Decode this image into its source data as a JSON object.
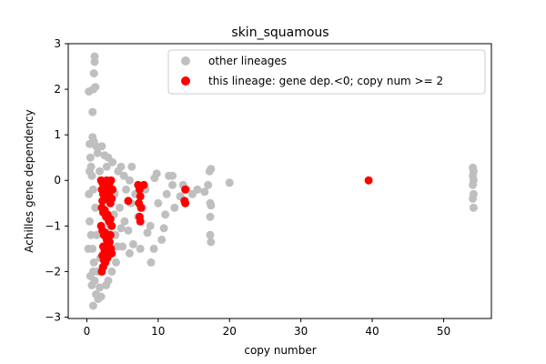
{
  "chart_data": {
    "type": "scatter",
    "title": "skin_squamous",
    "xlabel": "copy number",
    "ylabel": "Achilles gene dependency",
    "xlim": [
      -2.6,
      56.7
    ],
    "ylim": [
      -3.03,
      3.0
    ],
    "xticks": [
      0,
      10,
      20,
      30,
      40,
      50
    ],
    "yticks": [
      -3,
      -2,
      -1,
      0,
      1,
      2,
      3
    ],
    "grid": false,
    "legend_position": "top-right",
    "series": [
      {
        "name": "other lineages",
        "color": "#bfbfbf",
        "points": [
          [
            0.3,
            1.95
          ],
          [
            0.9,
            2.0
          ],
          [
            1.2,
            2.05
          ],
          [
            1.0,
            2.35
          ],
          [
            1.1,
            2.6
          ],
          [
            1.1,
            2.72
          ],
          [
            0.8,
            1.5
          ],
          [
            0.4,
            0.8
          ],
          [
            0.5,
            0.5
          ],
          [
            0.6,
            0.3
          ],
          [
            0.8,
            0.95
          ],
          [
            1.0,
            0.85
          ],
          [
            1.3,
            0.75
          ],
          [
            1.5,
            0.6
          ],
          [
            2.5,
            0.55
          ],
          [
            3.0,
            0.5
          ],
          [
            0.7,
            0.1
          ],
          [
            0.9,
            -0.2
          ],
          [
            1.2,
            -0.6
          ],
          [
            0.4,
            -0.9
          ],
          [
            0.6,
            -1.2
          ],
          [
            0.8,
            -1.5
          ],
          [
            1.0,
            -1.8
          ],
          [
            0.5,
            -2.1
          ],
          [
            0.7,
            -2.3
          ],
          [
            1.3,
            -2.5
          ],
          [
            0.9,
            -2.75
          ],
          [
            1.1,
            -2.2
          ],
          [
            1.5,
            -2.0
          ],
          [
            1.8,
            -2.35
          ],
          [
            2.0,
            -2.55
          ],
          [
            1.6,
            -2.6
          ],
          [
            1.9,
            -1.7
          ],
          [
            2.2,
            -1.9
          ],
          [
            2.7,
            -2.3
          ],
          [
            3.0,
            -2.2
          ],
          [
            3.5,
            -2.0
          ],
          [
            4.1,
            -1.8
          ],
          [
            4.3,
            -1.45
          ],
          [
            5.0,
            -1.45
          ],
          [
            4.0,
            -1.2
          ],
          [
            3.3,
            -1.0
          ],
          [
            4.6,
            -0.6
          ],
          [
            3.9,
            -0.3
          ],
          [
            4.4,
            0.2
          ],
          [
            5.2,
            0.1
          ],
          [
            3.6,
            0.4
          ],
          [
            4.8,
            0.3
          ],
          [
            5.5,
            -0.2
          ],
          [
            6.0,
            0.0
          ],
          [
            6.3,
            0.3
          ],
          [
            6.8,
            -0.3
          ],
          [
            7.2,
            -0.8
          ],
          [
            6.5,
            -1.4
          ],
          [
            7.5,
            -1.5
          ],
          [
            4.8,
            -1.05
          ],
          [
            5.8,
            -1.1
          ],
          [
            6.0,
            -1.6
          ],
          [
            8.5,
            -1.15
          ],
          [
            8.9,
            -1.0
          ],
          [
            9.4,
            -1.5
          ],
          [
            9.0,
            -1.8
          ],
          [
            10.5,
            -1.3
          ],
          [
            10.8,
            -1.05
          ],
          [
            11.0,
            -0.75
          ],
          [
            10.0,
            -0.5
          ],
          [
            9.5,
            0.05
          ],
          [
            9.8,
            0.15
          ],
          [
            11.5,
            0.1
          ],
          [
            12.0,
            -0.1
          ],
          [
            11.2,
            -0.3
          ],
          [
            12.3,
            -0.6
          ],
          [
            13.1,
            -0.35
          ],
          [
            13.5,
            -0.1
          ],
          [
            12.0,
            0.1
          ],
          [
            14.0,
            -0.2
          ],
          [
            14.8,
            -0.3
          ],
          [
            15.5,
            -0.2
          ],
          [
            16.5,
            -0.25
          ],
          [
            17.0,
            -0.1
          ],
          [
            17.2,
            0.2
          ],
          [
            17.4,
            0.25
          ],
          [
            17.3,
            -0.5
          ],
          [
            17.4,
            -0.55
          ],
          [
            17.3,
            -0.8
          ],
          [
            17.3,
            -1.2
          ],
          [
            17.4,
            -1.35
          ],
          [
            20.0,
            -0.05
          ],
          [
            1.8,
            0.2
          ],
          [
            2.5,
            -0.7
          ],
          [
            3.8,
            -0.75
          ],
          [
            5.3,
            -0.9
          ],
          [
            6.2,
            -0.5
          ],
          [
            7.8,
            -0.6
          ],
          [
            8.2,
            -0.2
          ],
          [
            2.1,
            0.75
          ],
          [
            2.8,
            0.3
          ],
          [
            1.4,
            -1.2
          ],
          [
            0.9,
            -2.0
          ],
          [
            54.1,
            0.28
          ],
          [
            54.2,
            0.2
          ],
          [
            54.1,
            0.1
          ],
          [
            54.2,
            0.0
          ],
          [
            54.1,
            -0.1
          ],
          [
            54.2,
            -0.3
          ],
          [
            54.1,
            -0.4
          ],
          [
            54.2,
            -0.6
          ],
          [
            0.2,
            -1.5
          ],
          [
            0.3,
            -0.3
          ],
          [
            0.4,
            0.2
          ]
        ]
      },
      {
        "name": "this lineage: gene dep.<0; copy num >= 2",
        "color": "#ff0000",
        "points": [
          [
            2.0,
            0.0
          ],
          [
            2.2,
            -0.05
          ],
          [
            2.4,
            -0.1
          ],
          [
            2.6,
            -0.05
          ],
          [
            2.8,
            0.0
          ],
          [
            3.0,
            -0.1
          ],
          [
            3.2,
            -0.05
          ],
          [
            3.4,
            0.0
          ],
          [
            2.1,
            -0.2
          ],
          [
            2.3,
            -0.3
          ],
          [
            2.5,
            -0.35
          ],
          [
            2.7,
            -0.25
          ],
          [
            2.9,
            -0.4
          ],
          [
            3.1,
            -0.3
          ],
          [
            3.3,
            -0.5
          ],
          [
            3.5,
            -0.4
          ],
          [
            2.1,
            -0.6
          ],
          [
            2.3,
            -0.7
          ],
          [
            2.5,
            -0.65
          ],
          [
            2.7,
            -0.8
          ],
          [
            2.9,
            -0.75
          ],
          [
            3.1,
            -0.9
          ],
          [
            3.3,
            -0.85
          ],
          [
            3.5,
            -1.0
          ],
          [
            2.0,
            -1.0
          ],
          [
            2.2,
            -1.1
          ],
          [
            2.4,
            -1.2
          ],
          [
            2.6,
            -1.15
          ],
          [
            2.8,
            -1.3
          ],
          [
            3.0,
            -1.25
          ],
          [
            3.2,
            -1.35
          ],
          [
            2.3,
            -1.45
          ],
          [
            2.5,
            -1.55
          ],
          [
            2.7,
            -1.5
          ],
          [
            3.4,
            -1.5
          ],
          [
            3.5,
            -1.6
          ],
          [
            2.2,
            -1.65
          ],
          [
            2.4,
            -1.75
          ],
          [
            2.6,
            -1.8
          ],
          [
            2.3,
            -1.9
          ],
          [
            2.1,
            -2.0
          ],
          [
            2.9,
            -1.7
          ],
          [
            3.1,
            -1.6
          ],
          [
            3.3,
            -1.2
          ],
          [
            2.2,
            -0.45
          ],
          [
            3.6,
            -0.2
          ],
          [
            5.8,
            -0.45
          ],
          [
            7.2,
            -0.1
          ],
          [
            7.4,
            -0.2
          ],
          [
            7.5,
            -0.35
          ],
          [
            7.3,
            -0.5
          ],
          [
            7.6,
            -0.6
          ],
          [
            7.4,
            -0.8
          ],
          [
            7.5,
            -0.9
          ],
          [
            8.0,
            -0.1
          ],
          [
            13.8,
            -0.2
          ],
          [
            13.7,
            -0.45
          ],
          [
            13.8,
            -0.5
          ],
          [
            39.5,
            0.0
          ]
        ]
      }
    ]
  }
}
